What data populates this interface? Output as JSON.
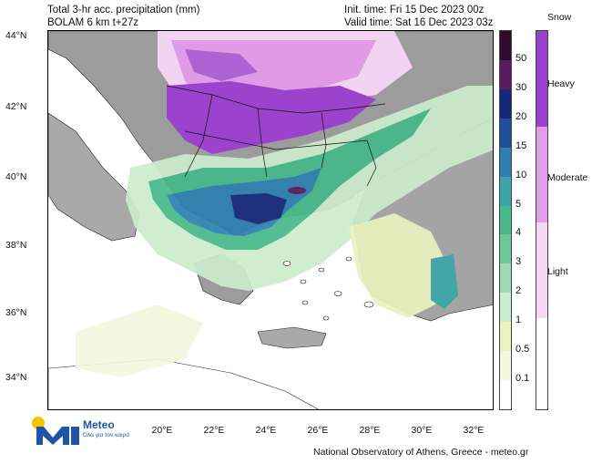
{
  "header": {
    "title_line1": "Total 3-hr acc. precipitation (mm)",
    "title_line2": "BOLAM 6 km t+27z",
    "init_time": "Init. time: Fri 15 Dec 2023 00z",
    "valid_time": "Valid time: Sat 16 Dec 2023 03z"
  },
  "map": {
    "region": "Greece and surrounding Balkans",
    "lat_labels": [
      "44°N",
      "42°N",
      "40°N",
      "38°N",
      "36°N",
      "34°N"
    ],
    "lon_labels": [
      "20°E",
      "22°E",
      "24°E",
      "26°E",
      "28°E",
      "30°E",
      "32°E"
    ]
  },
  "precip_scale": {
    "labels": [
      "50",
      "30",
      "20",
      "15",
      "10",
      "5",
      "4",
      "3",
      "2",
      "1",
      "0.5",
      "0.1"
    ],
    "colors": [
      "#2d0a2e",
      "#5a1a5e",
      "#15287a",
      "#1d4f9a",
      "#2c7fb0",
      "#3aa6a8",
      "#46b889",
      "#6cc89a",
      "#9ddcb2",
      "#cdeccd",
      "#eaf2c0",
      "#f3f7de",
      "#ffffff"
    ]
  },
  "snow_scale": {
    "title": "Snow",
    "labels": [
      "Heavy",
      "Moderate",
      "Light"
    ],
    "colors": [
      "#9b3fd0",
      "#e39bea",
      "#f7d6f6",
      "#ffffff"
    ]
  },
  "logo": {
    "name": "Meteo",
    "tagline": "Όλα για τον καιρό"
  },
  "credit": "National Observatory of Athens, Greece - meteo.gr"
}
